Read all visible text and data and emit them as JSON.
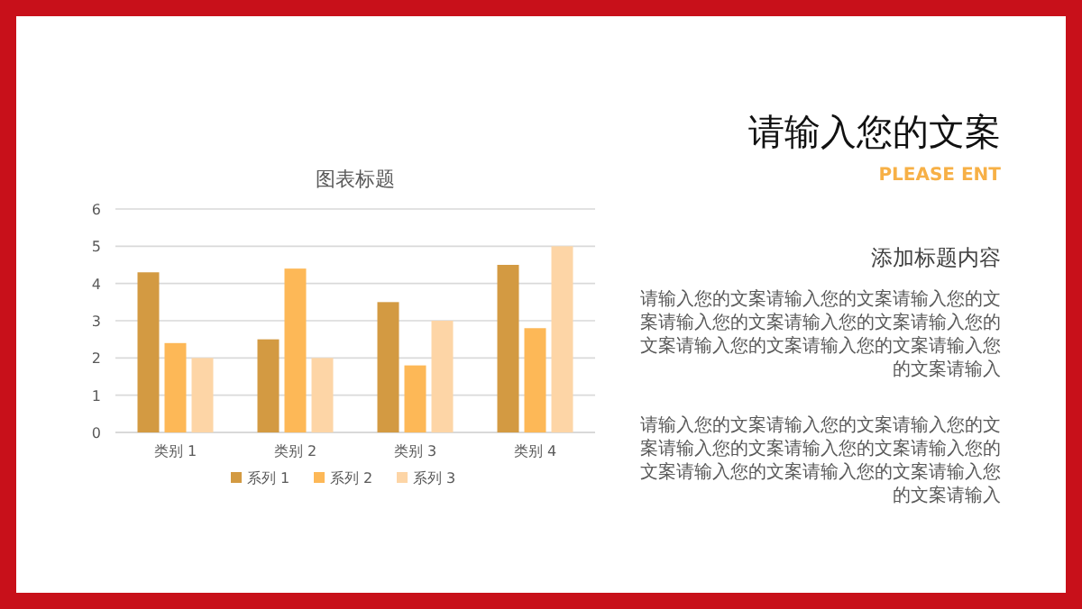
{
  "chart_data": {
    "type": "bar",
    "title": "图表标题",
    "categories": [
      "类别 1",
      "类别 2",
      "类别 3",
      "类别 4"
    ],
    "series": [
      {
        "name": "系列 1",
        "color": "#d39a42",
        "values": [
          4.3,
          2.5,
          3.5,
          4.5
        ]
      },
      {
        "name": "系列 2",
        "color": "#fdb857",
        "values": [
          2.4,
          4.4,
          1.8,
          2.8
        ]
      },
      {
        "name": "系列 3",
        "color": "#fdd5a6",
        "values": [
          2,
          2,
          3,
          5
        ]
      }
    ],
    "ylim": [
      0,
      6
    ],
    "yticks": [
      0,
      1,
      2,
      3,
      4,
      5,
      6
    ],
    "grid": "y",
    "legend": "bottom",
    "annotations": [
      "请输入您的文案",
      "PLEASE ENT",
      "添加标题内容",
      "请输入您的文案请输入您的文案请输入您的文案请输入您的文案请输入您的文案请输入您的文案请输入您的文案请输入您的文案请输入您的文案请输入",
      "请输入您的文案请输入您的文案请输入您的文案请输入您的文案请输入您的文案请输入您的文案请输入您的文案请输入您的文案请输入您的文案请输入"
    ]
  }
}
